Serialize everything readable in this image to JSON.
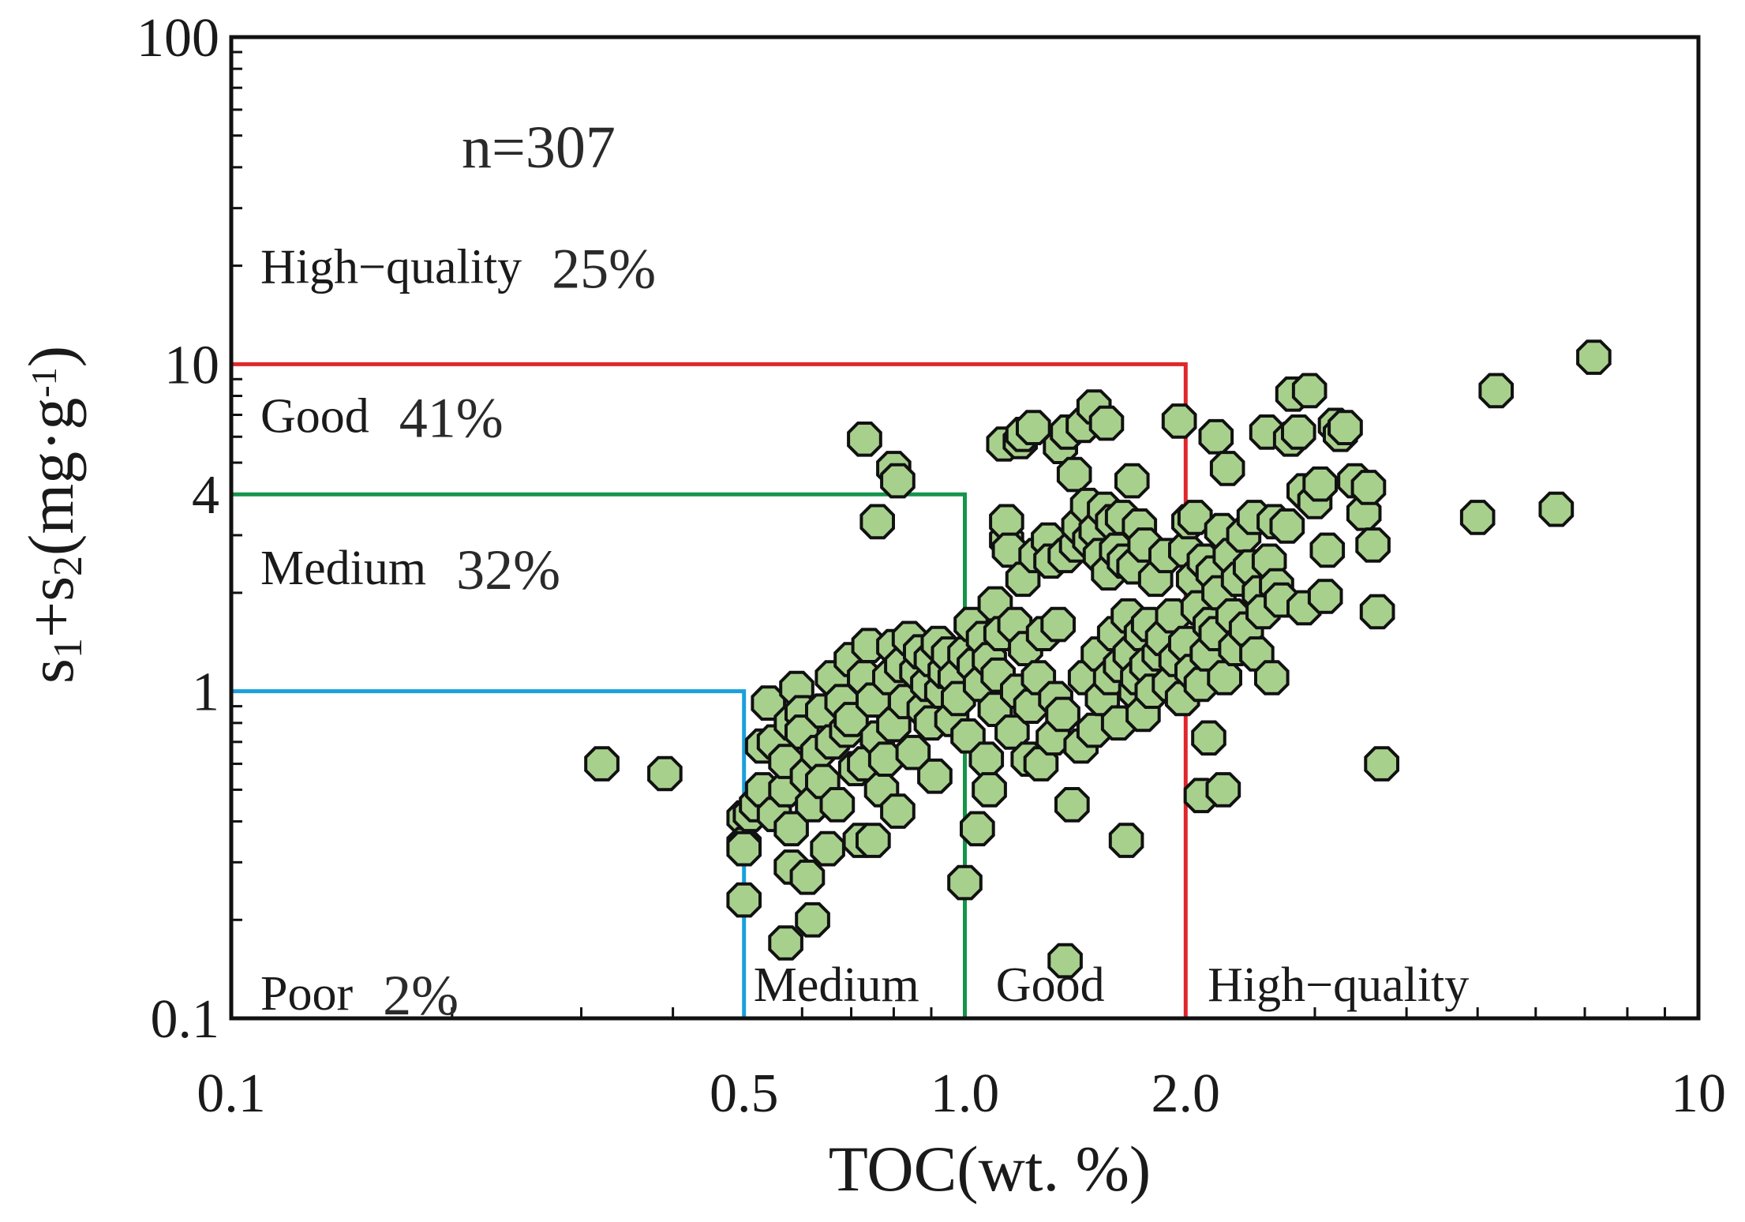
{
  "chart_data": {
    "type": "scatter",
    "title": "",
    "xlabel": "TOC(wt. %)",
    "ylabel": {
      "s1": "s",
      "sub1": "1",
      "plus": "+s",
      "sub2": "2",
      "unit_open": "(mg·g",
      "sup": "-1",
      "unit_close": ")"
    },
    "xscale": "log",
    "yscale": "log",
    "xlim": [
      0.1,
      10
    ],
    "ylim": [
      0.1,
      100
    ],
    "x_ticks": [
      {
        "value": 0.1,
        "label": "0.1"
      },
      {
        "value": 0.5,
        "label": "0.5"
      },
      {
        "value": 1.0,
        "label": "1.0"
      },
      {
        "value": 2.0,
        "label": "2.0"
      },
      {
        "value": 10,
        "label": "10"
      }
    ],
    "y_ticks": [
      {
        "value": 0.1,
        "label": "0.1"
      },
      {
        "value": 1,
        "label": "1"
      },
      {
        "value": 4,
        "label": "4"
      },
      {
        "value": 10,
        "label": "10"
      },
      {
        "value": 100,
        "label": "100"
      }
    ],
    "annotation": "n=307",
    "boundaries": [
      {
        "name": "poor-medium",
        "toc": 0.5,
        "s1s2": 1,
        "color": "#1aa0dc"
      },
      {
        "name": "medium-good",
        "toc": 1.0,
        "s1s2": 4,
        "color": "#15944a"
      },
      {
        "name": "good-highquality",
        "toc": 2.0,
        "s1s2": 10,
        "color": "#e0262c"
      }
    ],
    "y_class_labels": [
      {
        "label": "High−quality",
        "percent": "25%",
        "y": 20
      },
      {
        "label": "Good",
        "percent": "41%",
        "y": 7
      },
      {
        "label": "Medium",
        "percent": "32%",
        "y": 2.4
      },
      {
        "label": "Poor",
        "percent": "2%",
        "y": 0.12
      }
    ],
    "x_class_labels": [
      {
        "label": "Medium",
        "x": 0.5
      },
      {
        "label": "Good",
        "x": 1.07
      },
      {
        "label": "High−quality",
        "x": 2.08
      }
    ],
    "marker": {
      "fill": "#a8d08d",
      "stroke": "#111111"
    },
    "points": [
      [
        0.32,
        0.6
      ],
      [
        0.39,
        0.56
      ],
      [
        0.5,
        0.41
      ],
      [
        0.5,
        0.34
      ],
      [
        0.5,
        0.23
      ],
      [
        0.5,
        0.33
      ],
      [
        0.51,
        0.42
      ],
      [
        0.52,
        0.45
      ],
      [
        0.53,
        0.5
      ],
      [
        0.53,
        0.68
      ],
      [
        0.54,
        0.92
      ],
      [
        0.55,
        0.7
      ],
      [
        0.55,
        0.42
      ],
      [
        0.57,
        0.17
      ],
      [
        0.57,
        0.5
      ],
      [
        0.57,
        0.61
      ],
      [
        0.58,
        0.8
      ],
      [
        0.58,
        0.29
      ],
      [
        0.58,
        0.38
      ],
      [
        0.59,
        1.02
      ],
      [
        0.6,
        0.86
      ],
      [
        0.6,
        0.75
      ],
      [
        0.61,
        0.27
      ],
      [
        0.61,
        0.55
      ],
      [
        0.62,
        0.2
      ],
      [
        0.62,
        0.45
      ],
      [
        0.63,
        0.65
      ],
      [
        0.64,
        0.53
      ],
      [
        0.64,
        0.87
      ],
      [
        0.65,
        0.33
      ],
      [
        0.66,
        1.1
      ],
      [
        0.66,
        0.7
      ],
      [
        0.67,
        0.45
      ],
      [
        0.68,
        0.93
      ],
      [
        0.69,
        0.76
      ],
      [
        0.7,
        1.25
      ],
      [
        0.7,
        0.82
      ],
      [
        0.71,
        0.58
      ],
      [
        0.72,
        0.35
      ],
      [
        0.73,
        1.1
      ],
      [
        0.73,
        0.6
      ],
      [
        0.74,
        1.38
      ],
      [
        0.75,
        0.35
      ],
      [
        0.75,
        0.94
      ],
      [
        0.76,
        0.72
      ],
      [
        0.77,
        0.5
      ],
      [
        0.78,
        0.62
      ],
      [
        0.79,
        1.1
      ],
      [
        0.8,
        1.37
      ],
      [
        0.8,
        0.79
      ],
      [
        0.81,
        0.43
      ],
      [
        0.82,
        1.2
      ],
      [
        0.83,
        0.93
      ],
      [
        0.84,
        1.45
      ],
      [
        0.85,
        0.65
      ],
      [
        0.86,
        1.15
      ],
      [
        0.87,
        1.32
      ],
      [
        0.88,
        0.88
      ],
      [
        0.89,
        1.05
      ],
      [
        0.9,
        1.25
      ],
      [
        0.9,
        0.8
      ],
      [
        0.91,
        0.55
      ],
      [
        0.92,
        1.4
      ],
      [
        0.93,
        1.0
      ],
      [
        0.94,
        1.15
      ],
      [
        0.95,
        1.3
      ],
      [
        0.96,
        0.82
      ],
      [
        0.73,
        5.9
      ],
      [
        0.76,
        3.3
      ],
      [
        0.8,
        4.8
      ],
      [
        0.81,
        4.4
      ],
      [
        0.97,
        1.1
      ],
      [
        0.98,
        0.95
      ],
      [
        1.0,
        1.3
      ],
      [
        1.0,
        0.26
      ],
      [
        1.01,
        0.73
      ],
      [
        1.02,
        1.6
      ],
      [
        1.03,
        1.2
      ],
      [
        1.04,
        0.38
      ],
      [
        1.05,
        1.05
      ],
      [
        1.06,
        1.45
      ],
      [
        1.07,
        0.62
      ],
      [
        1.08,
        1.25
      ],
      [
        1.08,
        0.5
      ],
      [
        1.1,
        1.85
      ],
      [
        1.1,
        0.88
      ],
      [
        1.11,
        1.12
      ],
      [
        1.12,
        1.5
      ],
      [
        1.13,
        5.7
      ],
      [
        1.14,
        2.9
      ],
      [
        1.14,
        3.3
      ],
      [
        1.15,
        2.7
      ],
      [
        1.16,
        0.75
      ],
      [
        1.17,
        1.6
      ],
      [
        1.18,
        1.0
      ],
      [
        1.19,
        5.8
      ],
      [
        1.2,
        6.1
      ],
      [
        1.2,
        2.2
      ],
      [
        1.21,
        1.35
      ],
      [
        1.22,
        0.62
      ],
      [
        1.23,
        0.9
      ],
      [
        1.24,
        6.4
      ],
      [
        1.25,
        2.6
      ],
      [
        1.26,
        1.1
      ],
      [
        1.27,
        0.6
      ],
      [
        1.28,
        1.5
      ],
      [
        1.3,
        2.9
      ],
      [
        1.31,
        2.5
      ],
      [
        1.32,
        0.72
      ],
      [
        1.33,
        0.95
      ],
      [
        1.34,
        1.6
      ],
      [
        1.35,
        5.6
      ],
      [
        1.36,
        0.85
      ],
      [
        1.37,
        2.6
      ],
      [
        1.37,
        0.15
      ],
      [
        1.38,
        6.2
      ],
      [
        1.4,
        0.45
      ],
      [
        1.41,
        4.6
      ],
      [
        1.42,
        2.8
      ],
      [
        1.43,
        3.2
      ],
      [
        1.44,
        0.68
      ],
      [
        1.45,
        6.5
      ],
      [
        1.46,
        1.1
      ],
      [
        1.47,
        3.7
      ],
      [
        1.48,
        2.9
      ],
      [
        1.5,
        0.76
      ],
      [
        1.5,
        7.4
      ],
      [
        1.51,
        3.1
      ],
      [
        1.52,
        1.3
      ],
      [
        1.53,
        2.6
      ],
      [
        1.54,
        0.95
      ],
      [
        1.55,
        3.6
      ],
      [
        1.56,
        6.6
      ],
      [
        1.57,
        2.3
      ],
      [
        1.58,
        1.1
      ],
      [
        1.59,
        3.3
      ],
      [
        1.6,
        1.5
      ],
      [
        1.61,
        2.7
      ],
      [
        1.62,
        0.8
      ],
      [
        1.63,
        1.2
      ],
      [
        1.64,
        3.4
      ],
      [
        1.65,
        2.5
      ],
      [
        1.66,
        0.35
      ],
      [
        1.67,
        1.7
      ],
      [
        1.68,
        1.3
      ],
      [
        1.69,
        4.4
      ],
      [
        1.7,
        2.4
      ],
      [
        1.71,
        1.0
      ],
      [
        1.72,
        1.1
      ],
      [
        1.73,
        3.2
      ],
      [
        1.74,
        1.5
      ],
      [
        1.75,
        0.85
      ],
      [
        1.76,
        2.8
      ],
      [
        1.77,
        1.2
      ],
      [
        1.78,
        1.6
      ],
      [
        1.8,
        1.0
      ],
      [
        1.82,
        2.2
      ],
      [
        1.84,
        1.3
      ],
      [
        1.86,
        1.45
      ],
      [
        1.88,
        2.6
      ],
      [
        1.9,
        1.05
      ],
      [
        1.92,
        1.7
      ],
      [
        1.94,
        1.25
      ],
      [
        1.96,
        6.7
      ],
      [
        1.98,
        0.95
      ],
      [
        2.0,
        2.7
      ],
      [
        2.0,
        1.4
      ],
      [
        2.02,
        3.3
      ],
      [
        2.04,
        1.15
      ],
      [
        2.05,
        2.2
      ],
      [
        2.06,
        3.4
      ],
      [
        2.08,
        1.8
      ],
      [
        2.1,
        0.48
      ],
      [
        2.1,
        1.05
      ],
      [
        2.12,
        2.5
      ],
      [
        2.14,
        1.3
      ],
      [
        2.15,
        0.72
      ],
      [
        2.16,
        1.6
      ],
      [
        2.18,
        2.3
      ],
      [
        2.2,
        6.0
      ],
      [
        2.2,
        1.5
      ],
      [
        2.22,
        2.0
      ],
      [
        2.24,
        3.1
      ],
      [
        2.25,
        0.5
      ],
      [
        2.26,
        1.1
      ],
      [
        2.28,
        4.8
      ],
      [
        2.3,
        2.6
      ],
      [
        2.32,
        1.7
      ],
      [
        2.34,
        1.35
      ],
      [
        2.36,
        2.2
      ],
      [
        2.4,
        3.0
      ],
      [
        2.42,
        1.55
      ],
      [
        2.45,
        2.4
      ],
      [
        2.48,
        3.4
      ],
      [
        2.5,
        1.3
      ],
      [
        2.52,
        2.0
      ],
      [
        2.55,
        1.75
      ],
      [
        2.58,
        6.2
      ],
      [
        2.6,
        2.5
      ],
      [
        2.62,
        1.1
      ],
      [
        2.64,
        3.3
      ],
      [
        2.66,
        2.1
      ],
      [
        2.7,
        1.9
      ],
      [
        2.75,
        3.2
      ],
      [
        2.78,
        5.9
      ],
      [
        2.8,
        8.1
      ],
      [
        2.85,
        6.2
      ],
      [
        2.9,
        4.1
      ],
      [
        2.9,
        1.8
      ],
      [
        2.95,
        8.3
      ],
      [
        3.0,
        3.8
      ],
      [
        3.05,
        4.3
      ],
      [
        3.1,
        1.95
      ],
      [
        3.12,
        2.7
      ],
      [
        3.2,
        6.5
      ],
      [
        3.25,
        6.1
      ],
      [
        3.3,
        6.4
      ],
      [
        3.4,
        4.4
      ],
      [
        3.5,
        3.5
      ],
      [
        3.55,
        4.2
      ],
      [
        3.6,
        2.8
      ],
      [
        3.65,
        1.75
      ],
      [
        3.7,
        0.6
      ],
      [
        5.0,
        3.4
      ],
      [
        5.3,
        8.3
      ],
      [
        6.4,
        3.6
      ],
      [
        7.2,
        10.5
      ]
    ]
  }
}
